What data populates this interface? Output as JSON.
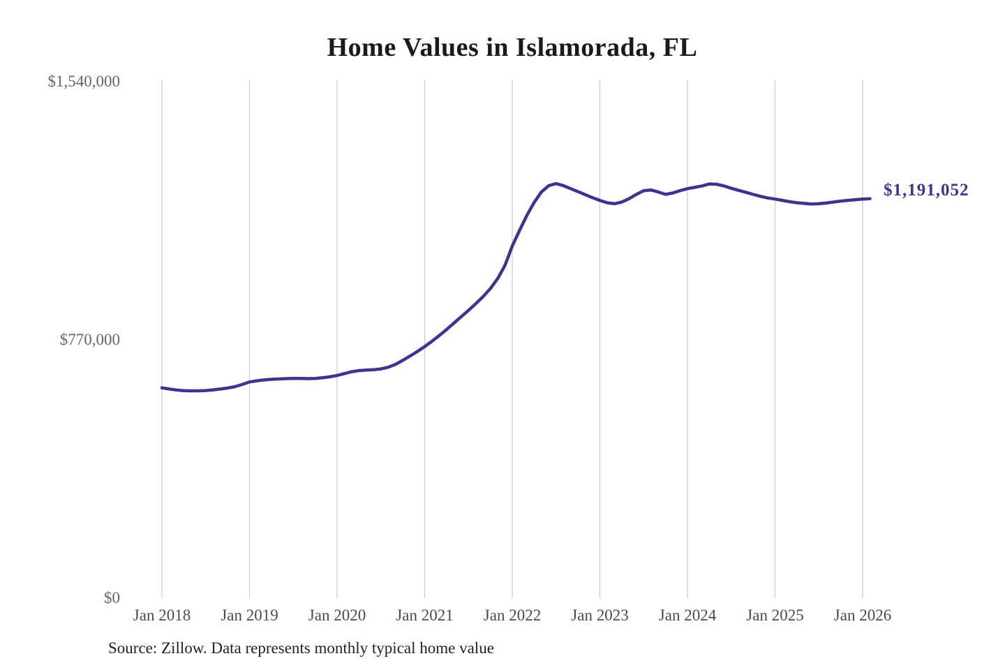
{
  "title": "Home Values in Islamorada, FL",
  "source_note": "Source: Zillow. Data represents monthly typical home value",
  "end_label": "$1,191,052",
  "colors": {
    "line": "#3b3490",
    "grid": "#cccccc",
    "y_tick_text": "#666666",
    "x_tick_text": "#4a4a4a",
    "title_text": "#1a1a1a",
    "source_text": "#222222",
    "end_label_text": "#3b3490"
  },
  "chart_data": {
    "type": "line",
    "title": "Home Values in Islamorada, FL",
    "xlabel": "",
    "ylabel": "",
    "ylim": [
      0,
      1540000
    ],
    "grid": "vertical-only",
    "legend": "none",
    "y_ticks": [
      {
        "label": "$1,540,000",
        "value": 1540000
      },
      {
        "label": "$770,000",
        "value": 770000
      },
      {
        "label": "$0",
        "value": 0
      }
    ],
    "x_ticks": [
      {
        "label": "Jan 2018",
        "month_index": 0
      },
      {
        "label": "Jan 2019",
        "month_index": 12
      },
      {
        "label": "Jan 2020",
        "month_index": 24
      },
      {
        "label": "Jan 2021",
        "month_index": 36
      },
      {
        "label": "Jan 2022",
        "month_index": 48
      },
      {
        "label": "Jan 2023",
        "month_index": 60
      },
      {
        "label": "Jan 2024",
        "month_index": 72
      },
      {
        "label": "Jan 2025",
        "month_index": 84
      },
      {
        "label": "Jan 2026",
        "month_index": 96
      }
    ],
    "series": [
      {
        "name": "Monthly typical home value",
        "x_start": "2018-01",
        "x_step_months": 1,
        "values": [
          627000,
          623500,
          620500,
          618500,
          618000,
          618000,
          619000,
          621000,
          623500,
          626500,
          630500,
          637000,
          644500,
          648000,
          650500,
          652500,
          653500,
          654500,
          655000,
          655000,
          654500,
          655000,
          657000,
          660000,
          664000,
          669500,
          675000,
          678500,
          680000,
          681000,
          683500,
          688500,
          697000,
          709000,
          722000,
          735500,
          750000,
          766000,
          783000,
          801000,
          820000,
          839000,
          858000,
          878000,
          899000,
          923000,
          953000,
          992000,
          1050000,
          1097000,
          1141000,
          1180000,
          1211000,
          1230000,
          1236000,
          1230000,
          1221000,
          1212000,
          1203000,
          1194000,
          1186000,
          1179000,
          1176000,
          1181000,
          1191000,
          1204000,
          1215000,
          1217000,
          1211000,
          1204000,
          1208000,
          1215000,
          1221000,
          1225000,
          1229000,
          1235000,
          1234000,
          1229000,
          1222000,
          1216000,
          1210000,
          1204000,
          1198000,
          1193000,
          1190000,
          1186000,
          1182000,
          1179000,
          1177000,
          1175000,
          1176000,
          1178000,
          1181000,
          1184000,
          1186000,
          1188000,
          1190000,
          1191052
        ]
      }
    ],
    "last_point": {
      "x": "2026-02",
      "value": 1191052,
      "label": "$1,191,052"
    }
  }
}
